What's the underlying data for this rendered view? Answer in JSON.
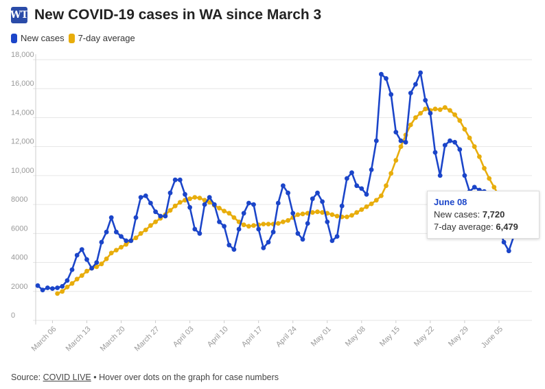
{
  "header": {
    "title": "New COVID-19 cases in WA since March 3",
    "logo_text": "WT"
  },
  "legend": {
    "items": [
      {
        "label": "New cases",
        "color": "#1b45c9"
      },
      {
        "label": "7-day average",
        "color": "#e8ad0c"
      }
    ]
  },
  "tooltip": {
    "date": "June 08",
    "new_cases_label": "New cases:",
    "new_cases_value": "7,720",
    "avg_label": "7-day average:",
    "avg_value": "6,479"
  },
  "footer": {
    "source_prefix": "Source:",
    "source_link": "COVID LIVE",
    "note": "• Hover over dots on the graph for case numbers"
  },
  "chart_data": {
    "type": "line",
    "title": "New COVID-19 cases in WA since March 3",
    "ylim": [
      0,
      18000
    ],
    "y_ticks": [
      0,
      2000,
      4000,
      6000,
      8000,
      10000,
      12000,
      14000,
      16000,
      18000
    ],
    "y_tick_labels": [
      "0",
      "2000",
      "4000",
      "6000",
      "8000",
      "10,000",
      "12,000",
      "14,000",
      "16,000",
      "18,000"
    ],
    "x_tick_labels": [
      "March 06",
      "March 13",
      "March 20",
      "March 27",
      "April 03",
      "April 10",
      "April 17",
      "April 24",
      "May 01",
      "May 08",
      "May 15",
      "May 22",
      "May 29",
      "June 05"
    ],
    "x_start": "March 03",
    "x_end": "June 08",
    "grid": true,
    "legend_position": "top-left",
    "series": [
      {
        "name": "New cases",
        "color": "#1b45c9",
        "values": [
          2400,
          2100,
          2250,
          2200,
          2250,
          2350,
          2750,
          3500,
          4500,
          4900,
          4200,
          3600,
          4000,
          5400,
          6100,
          7100,
          6100,
          5800,
          5500,
          5500,
          7100,
          8500,
          8600,
          8100,
          7500,
          7200,
          7200,
          8800,
          9700,
          9700,
          8700,
          7800,
          6300,
          6000,
          8000,
          8500,
          8000,
          6800,
          6500,
          5200,
          4900,
          6300,
          7400,
          8100,
          8000,
          6300,
          5000,
          5400,
          6100,
          8100,
          9300,
          8800,
          7400,
          6000,
          5600,
          6700,
          8400,
          8800,
          8200,
          6800,
          5500,
          5800,
          7900,
          9800,
          10200,
          9300,
          9100,
          8700,
          10400,
          12400,
          17000,
          16700,
          15600,
          13000,
          12400,
          12300,
          15700,
          16300,
          17100,
          15200,
          14300,
          11600,
          10000,
          12100,
          12400,
          12300,
          11800,
          10000,
          8900,
          9200,
          9000,
          8900,
          8000,
          7500,
          6400,
          5400,
          4800,
          5800,
          7720
        ],
        "marker_first_index": 0
      },
      {
        "name": "7-day average",
        "color": "#e8ad0c",
        "values": [
          1850,
          2000,
          2300,
          2550,
          2850,
          3100,
          3400,
          3600,
          3700,
          3900,
          4250,
          4650,
          4850,
          5050,
          5250,
          5500,
          5700,
          6000,
          6250,
          6550,
          6800,
          7050,
          7300,
          7600,
          7900,
          8150,
          8300,
          8400,
          8500,
          8450,
          8300,
          8150,
          7950,
          7750,
          7550,
          7400,
          7100,
          6800,
          6600,
          6500,
          6550,
          6600,
          6650,
          6650,
          6650,
          6700,
          6800,
          6900,
          7100,
          7300,
          7350,
          7400,
          7450,
          7500,
          7450,
          7400,
          7300,
          7200,
          7150,
          7150,
          7250,
          7450,
          7650,
          7850,
          8050,
          8300,
          8600,
          9300,
          10150,
          11050,
          12000,
          12800,
          13500,
          14000,
          14300,
          14600,
          14500,
          14600,
          14550,
          14700,
          14500,
          14200,
          13800,
          13200,
          12600,
          12000,
          11300,
          10500,
          9800,
          9200,
          8600,
          8100,
          7600,
          7150,
          6700,
          6550,
          6450,
          6479
        ],
        "marker_first_index": 4
      }
    ]
  }
}
